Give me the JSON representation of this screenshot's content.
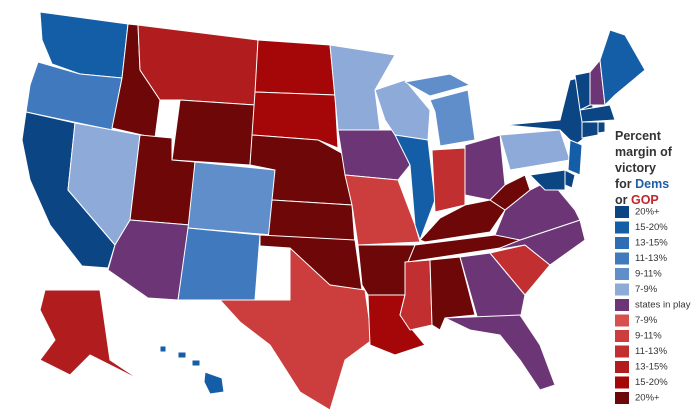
{
  "legend": {
    "title_lines": [
      "Percent",
      "margin of",
      "victory"
    ],
    "line4": {
      "prefix": "for",
      "highlight": "Dems"
    },
    "line5": {
      "prefix": "or",
      "highlight": "GOP"
    },
    "items": [
      {
        "label": "20%+",
        "color": "#0c4583"
      },
      {
        "label": "15-20%",
        "color": "#145ea8"
      },
      {
        "label": "13-15%",
        "color": "#2c6db5"
      },
      {
        "label": "11-13%",
        "color": "#4079bd"
      },
      {
        "label": "9-11%",
        "color": "#5f8ecb"
      },
      {
        "label": "7-9%",
        "color": "#8eaad9"
      },
      {
        "label": "states in play",
        "color": "#6c3676"
      },
      {
        "label": "7-9%",
        "color": "#d65050"
      },
      {
        "label": "9-11%",
        "color": "#cc3d3d"
      },
      {
        "label": "11-13%",
        "color": "#c12f31"
      },
      {
        "label": "13-15%",
        "color": "#b11c1f"
      },
      {
        "label": "15-20%",
        "color": "#a50607"
      },
      {
        "label": "20%+",
        "color": "#6d0708"
      }
    ]
  }
}
